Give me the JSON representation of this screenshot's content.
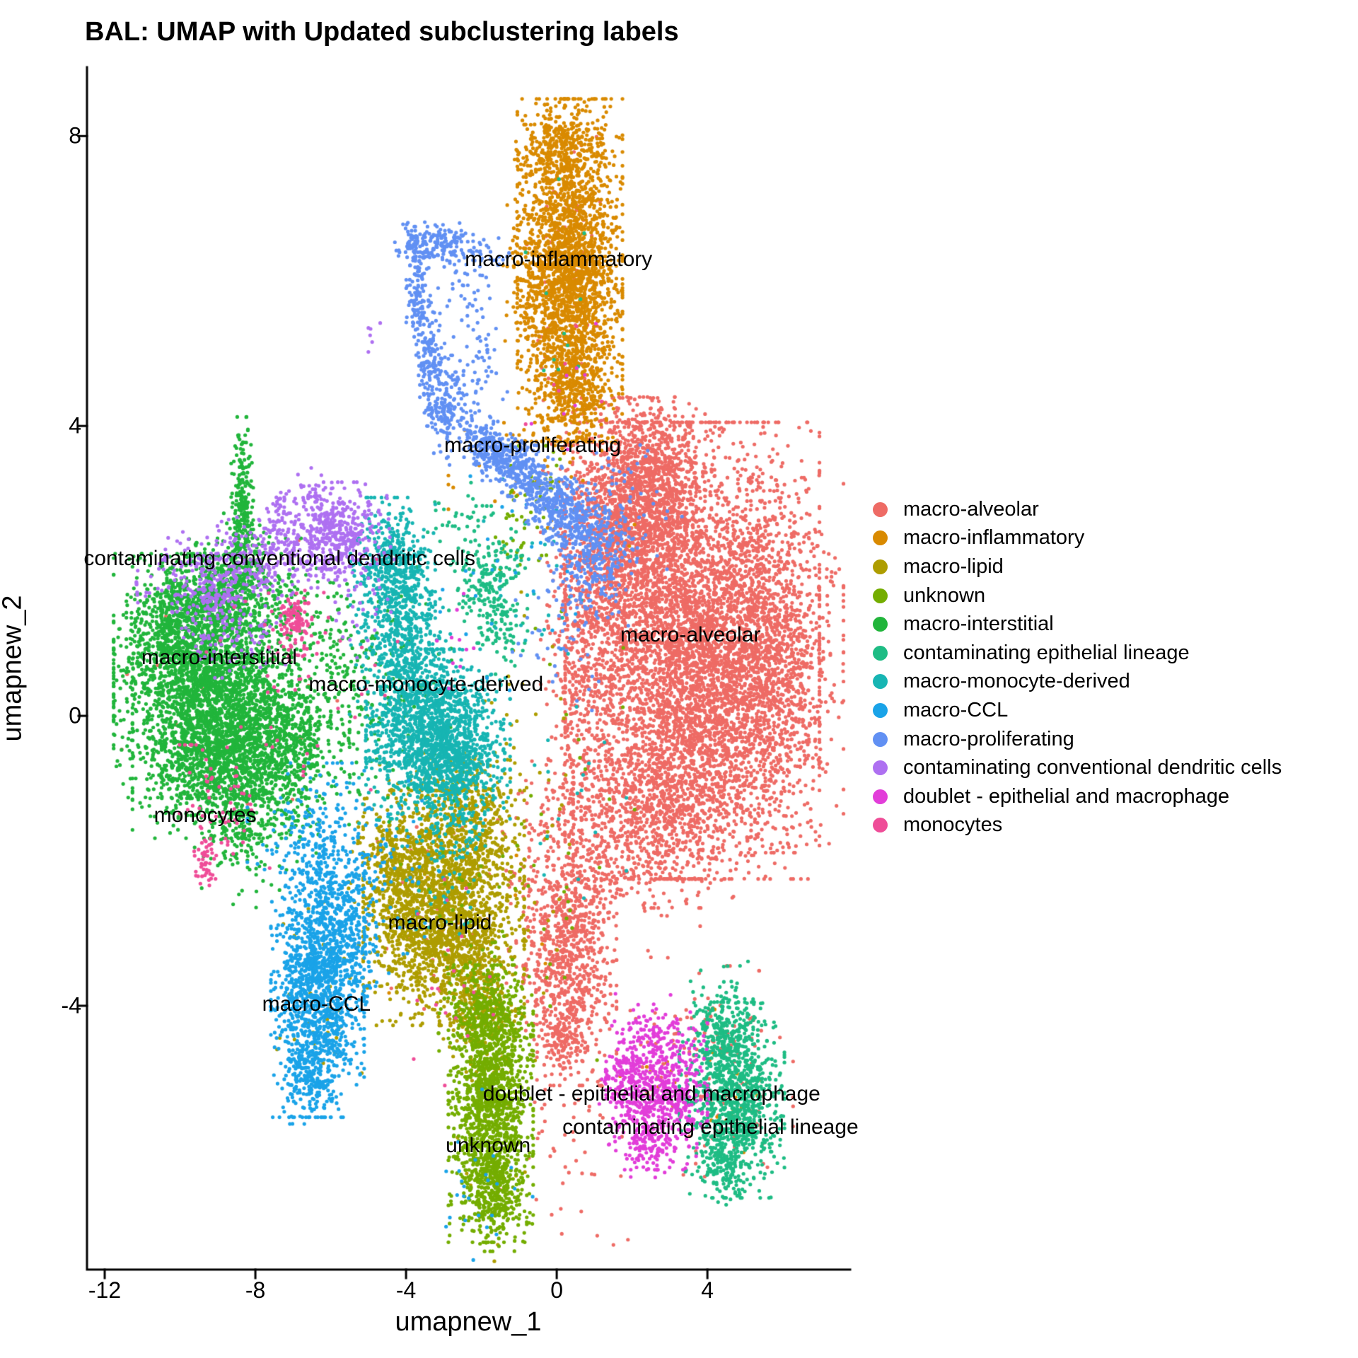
{
  "chart_data": {
    "type": "scatter",
    "title": "BAL: UMAP with Updated subclustering labels",
    "xlabel": "umapnew_1",
    "ylabel": "umapnew_2",
    "xlim": [
      -12.47,
      7.79
    ],
    "ylim": [
      -7.64,
      8.95
    ],
    "xticks": [
      -12,
      -8,
      -4,
      0,
      4
    ],
    "yticks": [
      8,
      4,
      0,
      -4
    ],
    "grid": false,
    "legend_position": "right",
    "point_radius_px": 2.6,
    "clusters": [
      {
        "name": "macro-alveolar",
        "color": "#EE6B65",
        "label": {
          "text": "macro-alveolar",
          "x": 3.55,
          "y": 1.11
        },
        "blobs": [
          {
            "cx": 3.6,
            "cy": 0.9,
            "sx": 1.5,
            "sy": 1.4,
            "n": 5000
          },
          {
            "cx": 1.9,
            "cy": 2.7,
            "sx": 0.8,
            "sy": 0.75,
            "n": 1300
          },
          {
            "cx": 2.7,
            "cy": 3.5,
            "sx": 0.55,
            "sy": 0.4,
            "n": 380
          },
          {
            "cx": 5.7,
            "cy": 0.7,
            "sx": 0.85,
            "sy": 1.15,
            "n": 1000
          },
          {
            "cx": 2.8,
            "cy": -1.3,
            "sx": 1.05,
            "sy": 0.6,
            "n": 650
          },
          {
            "cx": 0.7,
            "cy": 0.6,
            "sx": 0.5,
            "sy": 1.4,
            "n": 520
          },
          {
            "cx": 0.35,
            "cy": -3.3,
            "sx": 0.55,
            "sy": 0.8,
            "n": 820
          },
          {
            "cx": 0.15,
            "cy": -4.45,
            "sx": 0.3,
            "sy": 0.22,
            "n": 110
          },
          {
            "cx": 1.4,
            "cy": -2.0,
            "sx": 1.1,
            "sy": 0.65,
            "n": 180
          },
          {
            "cx": -0.5,
            "cy": -2.0,
            "sx": 0.55,
            "sy": 0.75,
            "n": 90
          },
          {
            "cx": 0.3,
            "cy": 6.2,
            "sx": 0.55,
            "sy": 1.0,
            "n": 60
          },
          {
            "cx": 3.9,
            "cy": -4.35,
            "sx": 0.9,
            "sy": 0.4,
            "n": 70
          },
          {
            "cx": 0.4,
            "cy": -5.6,
            "sx": 0.9,
            "sy": 0.8,
            "n": 60
          },
          {
            "cx": -9.2,
            "cy": 0.4,
            "sx": 1.5,
            "sy": 0.9,
            "n": 25
          },
          {
            "cx": 4.7,
            "cy": -5.3,
            "sx": 0.7,
            "sy": 0.6,
            "n": 40
          },
          {
            "cx": -3.2,
            "cy": -2.7,
            "sx": 1.0,
            "sy": 0.8,
            "n": 30
          }
        ]
      },
      {
        "name": "macro-inflammatory",
        "color": "#D98A00",
        "label": {
          "text": "macro-inflammatory",
          "x": 0.05,
          "y": 6.3
        },
        "blobs": [
          {
            "cx": 0.35,
            "cy": 6.15,
            "sx": 0.62,
            "sy": 1.05,
            "n": 2400
          },
          {
            "cx": 0.1,
            "cy": 7.85,
            "sx": 0.5,
            "sy": 0.25,
            "n": 260
          },
          {
            "cx": 0.45,
            "cy": 4.45,
            "sx": 0.45,
            "sy": 0.35,
            "n": 240
          },
          {
            "cx": -0.75,
            "cy": 5.9,
            "sx": 0.3,
            "sy": 0.9,
            "n": 140
          },
          {
            "cx": -0.4,
            "cy": 3.4,
            "sx": 1.1,
            "sy": 0.5,
            "n": 40
          },
          {
            "cx": -3.0,
            "cy": -2.7,
            "sx": 1.2,
            "sy": 0.8,
            "n": 25
          },
          {
            "cx": 4.6,
            "cy": -5.2,
            "sx": 0.55,
            "sy": 0.55,
            "n": 22
          },
          {
            "cx": 2.6,
            "cy": -5.2,
            "sx": 0.5,
            "sy": 0.4,
            "n": 14
          }
        ]
      },
      {
        "name": "macro-lipid",
        "color": "#AE9D00",
        "label": {
          "text": "macro-lipid",
          "x": -3.1,
          "y": -2.86
        },
        "blobs": [
          {
            "cx": -3.0,
            "cy": -2.65,
            "sx": 0.95,
            "sy": 0.72,
            "n": 2000
          },
          {
            "cx": -4.4,
            "cy": -2.15,
            "sx": 0.5,
            "sy": 0.45,
            "n": 300
          },
          {
            "cx": -2.35,
            "cy": -1.55,
            "sx": 0.55,
            "sy": 0.4,
            "n": 280
          },
          {
            "cx": -2.1,
            "cy": -3.9,
            "sx": 0.45,
            "sy": 0.45,
            "n": 260
          },
          {
            "cx": -2.9,
            "cy": -1.05,
            "sx": 0.8,
            "sy": 0.3,
            "n": 110
          },
          {
            "cx": -0.9,
            "cy": -0.9,
            "sx": 0.9,
            "sy": 1.3,
            "n": 50
          },
          {
            "cx": -6.3,
            "cy": -3.9,
            "sx": 0.5,
            "sy": 0.7,
            "n": 40
          },
          {
            "cx": -1.7,
            "cy": -5.5,
            "sx": 0.5,
            "sy": 0.9,
            "n": 40
          }
        ]
      },
      {
        "name": "unknown",
        "color": "#74AD00",
        "label": {
          "text": "unknown",
          "x": -1.82,
          "y": -5.93
        },
        "blobs": [
          {
            "cx": -1.75,
            "cy": -5.35,
            "sx": 0.5,
            "sy": 0.85,
            "n": 1450
          },
          {
            "cx": -1.65,
            "cy": -6.6,
            "sx": 0.38,
            "sy": 0.35,
            "n": 260
          },
          {
            "cx": -1.9,
            "cy": -4.15,
            "sx": 0.55,
            "sy": 0.3,
            "n": 260
          },
          {
            "cx": -0.95,
            "cy": 2.6,
            "sx": 0.3,
            "sy": 0.5,
            "n": 45
          },
          {
            "cx": -0.2,
            "cy": 3.3,
            "sx": 0.2,
            "sy": 0.25,
            "n": 18
          },
          {
            "cx": -2.2,
            "cy": -2.8,
            "sx": 0.9,
            "sy": 0.9,
            "n": 40
          },
          {
            "cx": 0.3,
            "cy": -1.5,
            "sx": 0.8,
            "sy": 1.5,
            "n": 30
          }
        ]
      },
      {
        "name": "macro-interstitial",
        "color": "#21B53B",
        "label": {
          "text": "macro-interstitial",
          "x": -8.96,
          "y": 0.8
        },
        "blobs": [
          {
            "cx": -9.4,
            "cy": 0.55,
            "sx": 1.05,
            "sy": 0.75,
            "n": 2200
          },
          {
            "cx": -8.9,
            "cy": -0.45,
            "sx": 1.05,
            "sy": 0.55,
            "n": 1300
          },
          {
            "cx": -7.3,
            "cy": -0.4,
            "sx": 0.8,
            "sy": 0.55,
            "n": 650
          },
          {
            "cx": -10.3,
            "cy": 1.3,
            "sx": 0.5,
            "sy": 0.4,
            "n": 300
          },
          {
            "cx": -9.0,
            "cy": 1.6,
            "sx": 0.6,
            "sy": 0.35,
            "n": 330
          },
          {
            "cx": -8.35,
            "cy": 3.0,
            "sx": 0.13,
            "sy": 0.5,
            "n": 200
          },
          {
            "cx": -8.3,
            "cy": 2.25,
            "sx": 0.3,
            "sy": 0.28,
            "n": 120
          },
          {
            "cx": -8.2,
            "cy": 1.55,
            "sx": 0.7,
            "sy": 0.4,
            "n": 220
          },
          {
            "cx": -8.6,
            "cy": -1.4,
            "sx": 0.45,
            "sy": 0.3,
            "n": 140
          },
          {
            "cx": -8.3,
            "cy": -2.0,
            "sx": 0.5,
            "sy": 0.3,
            "n": 50
          },
          {
            "cx": -5.4,
            "cy": 0.3,
            "sx": 0.6,
            "sy": 0.6,
            "n": 140
          },
          {
            "cx": -6.3,
            "cy": 1.3,
            "sx": 0.5,
            "sy": 0.4,
            "n": 80
          },
          {
            "cx": -6.9,
            "cy": -1.5,
            "sx": 0.4,
            "sy": 0.3,
            "n": 25
          },
          {
            "cx": -4.0,
            "cy": 0.3,
            "sx": 0.8,
            "sy": 0.8,
            "n": 60
          }
        ]
      },
      {
        "name": "contaminating epithelial lineage",
        "color": "#1EBC84",
        "label": {
          "text": "contaminating epithelial lineage",
          "x": 4.08,
          "y": -5.68
        },
        "blobs": [
          {
            "cx": 4.65,
            "cy": -5.3,
            "sx": 0.62,
            "sy": 0.6,
            "n": 1050
          },
          {
            "cx": 4.5,
            "cy": -4.5,
            "sx": 0.38,
            "sy": 0.28,
            "n": 160
          },
          {
            "cx": 4.45,
            "cy": -6.25,
            "sx": 0.3,
            "sy": 0.22,
            "n": 90
          },
          {
            "cx": 4.4,
            "cy": -3.95,
            "sx": 0.45,
            "sy": 0.25,
            "n": 45
          },
          {
            "cx": -1.85,
            "cy": 1.95,
            "sx": 0.45,
            "sy": 0.42,
            "n": 210
          },
          {
            "cx": -1.45,
            "cy": 1.25,
            "sx": 0.3,
            "sy": 0.3,
            "n": 55
          },
          {
            "cx": -2.7,
            "cy": 2.7,
            "sx": 0.35,
            "sy": 0.25,
            "n": 25
          },
          {
            "cx": 0.3,
            "cy": 5.5,
            "sx": 0.5,
            "sy": 1.0,
            "n": 12
          }
        ]
      },
      {
        "name": "macro-monocyte-derived",
        "color": "#17B5B3",
        "label": {
          "text": "macro-monocyte-derived",
          "x": -3.47,
          "y": 0.43
        },
        "blobs": [
          {
            "cx": -4.35,
            "cy": 2.0,
            "sx": 0.5,
            "sy": 0.45,
            "n": 520
          },
          {
            "cx": -3.95,
            "cy": 0.85,
            "sx": 0.5,
            "sy": 0.6,
            "n": 480
          },
          {
            "cx": -3.15,
            "cy": -0.25,
            "sx": 0.85,
            "sy": 0.52,
            "n": 1250
          },
          {
            "cx": -2.8,
            "cy": -0.6,
            "sx": 0.5,
            "sy": 0.3,
            "n": 350
          },
          {
            "cx": -2.7,
            "cy": -1.4,
            "sx": 0.45,
            "sy": 0.35,
            "n": 110
          },
          {
            "cx": -4.6,
            "cy": 0.0,
            "sx": 0.4,
            "sy": 0.8,
            "n": 120
          },
          {
            "cx": -3.0,
            "cy": -2.3,
            "sx": 0.6,
            "sy": 0.5,
            "n": 40
          },
          {
            "cx": -0.6,
            "cy": 2.0,
            "sx": 0.6,
            "sy": 0.6,
            "n": 25
          },
          {
            "cx": 0.5,
            "cy": -0.5,
            "sx": 0.6,
            "sy": 1.2,
            "n": 20
          }
        ]
      },
      {
        "name": "macro-CCL",
        "color": "#1AA3E8",
        "label": {
          "text": "macro-CCL",
          "x": -6.38,
          "y": -3.98
        },
        "blobs": [
          {
            "cx": -6.35,
            "cy": -3.85,
            "sx": 0.55,
            "sy": 0.75,
            "n": 1250
          },
          {
            "cx": -6.1,
            "cy": -2.4,
            "sx": 0.65,
            "sy": 0.5,
            "n": 330
          },
          {
            "cx": -6.3,
            "cy": -1.55,
            "sx": 0.85,
            "sy": 0.4,
            "n": 130
          },
          {
            "cx": -6.55,
            "cy": -5.0,
            "sx": 0.32,
            "sy": 0.28,
            "n": 130
          },
          {
            "cx": -5.5,
            "cy": -3.3,
            "sx": 0.32,
            "sy": 0.55,
            "n": 160
          },
          {
            "cx": -4.6,
            "cy": -2.2,
            "sx": 0.7,
            "sy": 0.6,
            "n": 60
          },
          {
            "cx": -2.0,
            "cy": -6.3,
            "sx": 0.7,
            "sy": 0.6,
            "n": 25
          },
          {
            "cx": -1.3,
            "cy": 1.8,
            "sx": 0.8,
            "sy": 0.8,
            "n": 25
          }
        ]
      },
      {
        "name": "macro-proliferating",
        "color": "#6190F3",
        "label": {
          "text": "macro-proliferating",
          "x": -0.64,
          "y": 3.73
        },
        "blobs": [
          {
            "cx": -3.3,
            "cy": 6.52,
            "sx": 0.48,
            "sy": 0.13,
            "n": 170
          },
          {
            "cx": -1.9,
            "cy": 6.4,
            "sx": 0.4,
            "sy": 0.15,
            "n": 30
          },
          {
            "cx": -3.68,
            "cy": 5.85,
            "sx": 0.14,
            "sy": 0.4,
            "n": 130
          },
          {
            "cx": -3.35,
            "cy": 4.9,
            "sx": 0.17,
            "sy": 0.4,
            "n": 140
          },
          {
            "cx": -2.95,
            "cy": 4.3,
            "sx": 0.25,
            "sy": 0.3,
            "n": 130
          },
          {
            "cx": -1.6,
            "cy": 3.6,
            "sx": 0.6,
            "sy": 0.2,
            "rot": -18,
            "n": 340
          },
          {
            "cx": -0.1,
            "cy": 2.95,
            "sx": 0.8,
            "sy": 0.24,
            "rot": -24,
            "n": 480
          },
          {
            "cx": 0.8,
            "cy": 2.2,
            "sx": 0.45,
            "sy": 0.45,
            "n": 220
          },
          {
            "cx": 1.45,
            "cy": 2.5,
            "sx": 0.35,
            "sy": 0.55,
            "n": 90
          },
          {
            "cx": -2.3,
            "cy": 4.7,
            "sx": 0.5,
            "sy": 0.55,
            "n": 70
          },
          {
            "cx": -2.5,
            "cy": 5.9,
            "sx": 0.4,
            "sy": 0.4,
            "n": 40
          },
          {
            "cx": 0.4,
            "cy": 1.2,
            "sx": 0.7,
            "sy": 0.5,
            "n": 50
          },
          {
            "cx": 2.2,
            "cy": 2.6,
            "sx": 0.5,
            "sy": 0.6,
            "n": 25
          }
        ]
      },
      {
        "name": "contaminating conventional dendritic cells",
        "color": "#AE70F1",
        "label": {
          "text": "contaminating conventional dendritic cells",
          "x": -7.36,
          "y": 2.17
        },
        "blobs": [
          {
            "cx": -5.85,
            "cy": 2.55,
            "sx": 0.5,
            "sy": 0.3,
            "n": 300
          },
          {
            "cx": -7.8,
            "cy": 2.2,
            "sx": 1.5,
            "sy": 0.28,
            "rot": 8,
            "n": 430
          },
          {
            "cx": -9.2,
            "cy": 1.65,
            "sx": 0.45,
            "sy": 0.35,
            "n": 130
          },
          {
            "cx": -8.3,
            "cy": 1.2,
            "sx": 0.6,
            "sy": 0.3,
            "n": 70
          },
          {
            "cx": -7.3,
            "cy": 2.85,
            "sx": 0.2,
            "sy": 0.15,
            "n": 50
          },
          {
            "cx": -6.5,
            "cy": 3.0,
            "sx": 0.25,
            "sy": 0.2,
            "n": 40
          },
          {
            "cx": -4.9,
            "cy": 5.1,
            "sx": 0.25,
            "sy": 0.35,
            "n": 6
          },
          {
            "cx": -5.2,
            "cy": 1.7,
            "sx": 0.4,
            "sy": 0.4,
            "n": 40
          }
        ]
      },
      {
        "name": "doublet - epithelial and macrophage",
        "color": "#E23DD9",
        "label": {
          "text": "doublet - epithelial and macrophage",
          "x": 2.52,
          "y": -5.22
        },
        "blobs": [
          {
            "cx": 2.65,
            "cy": -5.25,
            "sx": 0.6,
            "sy": 0.45,
            "n": 520
          },
          {
            "cx": 1.85,
            "cy": -4.95,
            "sx": 0.32,
            "sy": 0.3,
            "n": 120
          },
          {
            "cx": 2.6,
            "cy": -4.45,
            "sx": 0.5,
            "sy": 0.28,
            "n": 90
          },
          {
            "cx": 2.45,
            "cy": -5.95,
            "sx": 0.3,
            "sy": 0.2,
            "n": 70
          },
          {
            "cx": 3.6,
            "cy": -5.1,
            "sx": 0.35,
            "sy": 0.45,
            "n": 60
          },
          {
            "cx": -2.6,
            "cy": 0.9,
            "sx": 0.4,
            "sy": 0.5,
            "n": 10
          },
          {
            "cx": 0.2,
            "cy": 4.6,
            "sx": 0.6,
            "sy": 0.6,
            "n": 8
          }
        ]
      },
      {
        "name": "monocytes",
        "color": "#EF4D98",
        "label": {
          "text": "monocytes",
          "x": -9.33,
          "y": -1.37
        },
        "blobs": [
          {
            "cx": -6.9,
            "cy": 1.35,
            "sx": 0.18,
            "sy": 0.17,
            "n": 90
          },
          {
            "cx": -7.15,
            "cy": 1.0,
            "sx": 0.3,
            "sy": 0.25,
            "n": 30
          },
          {
            "cx": -9.35,
            "cy": -2.0,
            "sx": 0.13,
            "sy": 0.2,
            "n": 45
          },
          {
            "cx": -9.0,
            "cy": -1.3,
            "sx": 0.45,
            "sy": 0.4,
            "n": 45
          },
          {
            "cx": -6.6,
            "cy": 0.6,
            "sx": 1.2,
            "sy": 0.8,
            "n": 30
          },
          {
            "cx": -8.0,
            "cy": -0.3,
            "sx": 1.0,
            "sy": 0.8,
            "n": 25
          },
          {
            "cx": -2.6,
            "cy": -3.3,
            "sx": 0.7,
            "sy": 0.8,
            "n": 20
          },
          {
            "cx": 0.3,
            "cy": 4.7,
            "sx": 0.5,
            "sy": 0.3,
            "n": 6
          }
        ]
      }
    ]
  }
}
